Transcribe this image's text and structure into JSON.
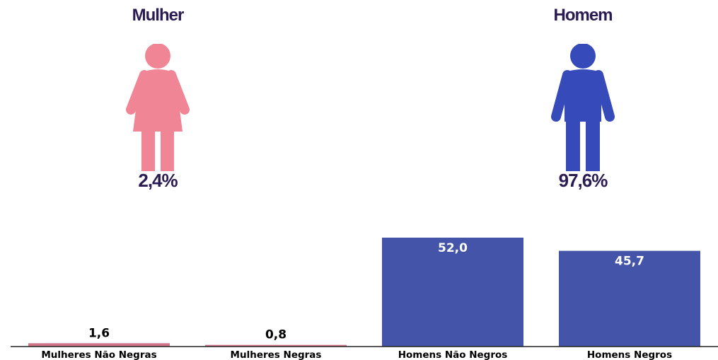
{
  "groups": {
    "female": {
      "title": "Mulher",
      "share": "2,4%",
      "icon": "female-person-icon",
      "color": "#ef8595"
    },
    "male": {
      "title": "Homem",
      "share": "97,6%",
      "icon": "male-person-icon",
      "color": "#364ab9"
    }
  },
  "chart_data": {
    "type": "bar",
    "categories": [
      "Mulheres Não Negras",
      "Mulheres Negras",
      "Homens Não Negros",
      "Homens Negros"
    ],
    "values": [
      1.6,
      0.8,
      52.0,
      45.7
    ],
    "value_labels": [
      "1,6",
      "0,8",
      "52,0",
      "45,7"
    ],
    "bar_colors": [
      "#cf7588",
      "#cf7588",
      "#4454a8",
      "#4454a8"
    ],
    "label_colors": [
      "#000000",
      "#000000",
      "#ffffff",
      "#ffffff"
    ],
    "ylim": [
      0,
      52.0
    ],
    "grid": false,
    "legend": false,
    "title": "",
    "xlabel": "",
    "ylabel": ""
  }
}
